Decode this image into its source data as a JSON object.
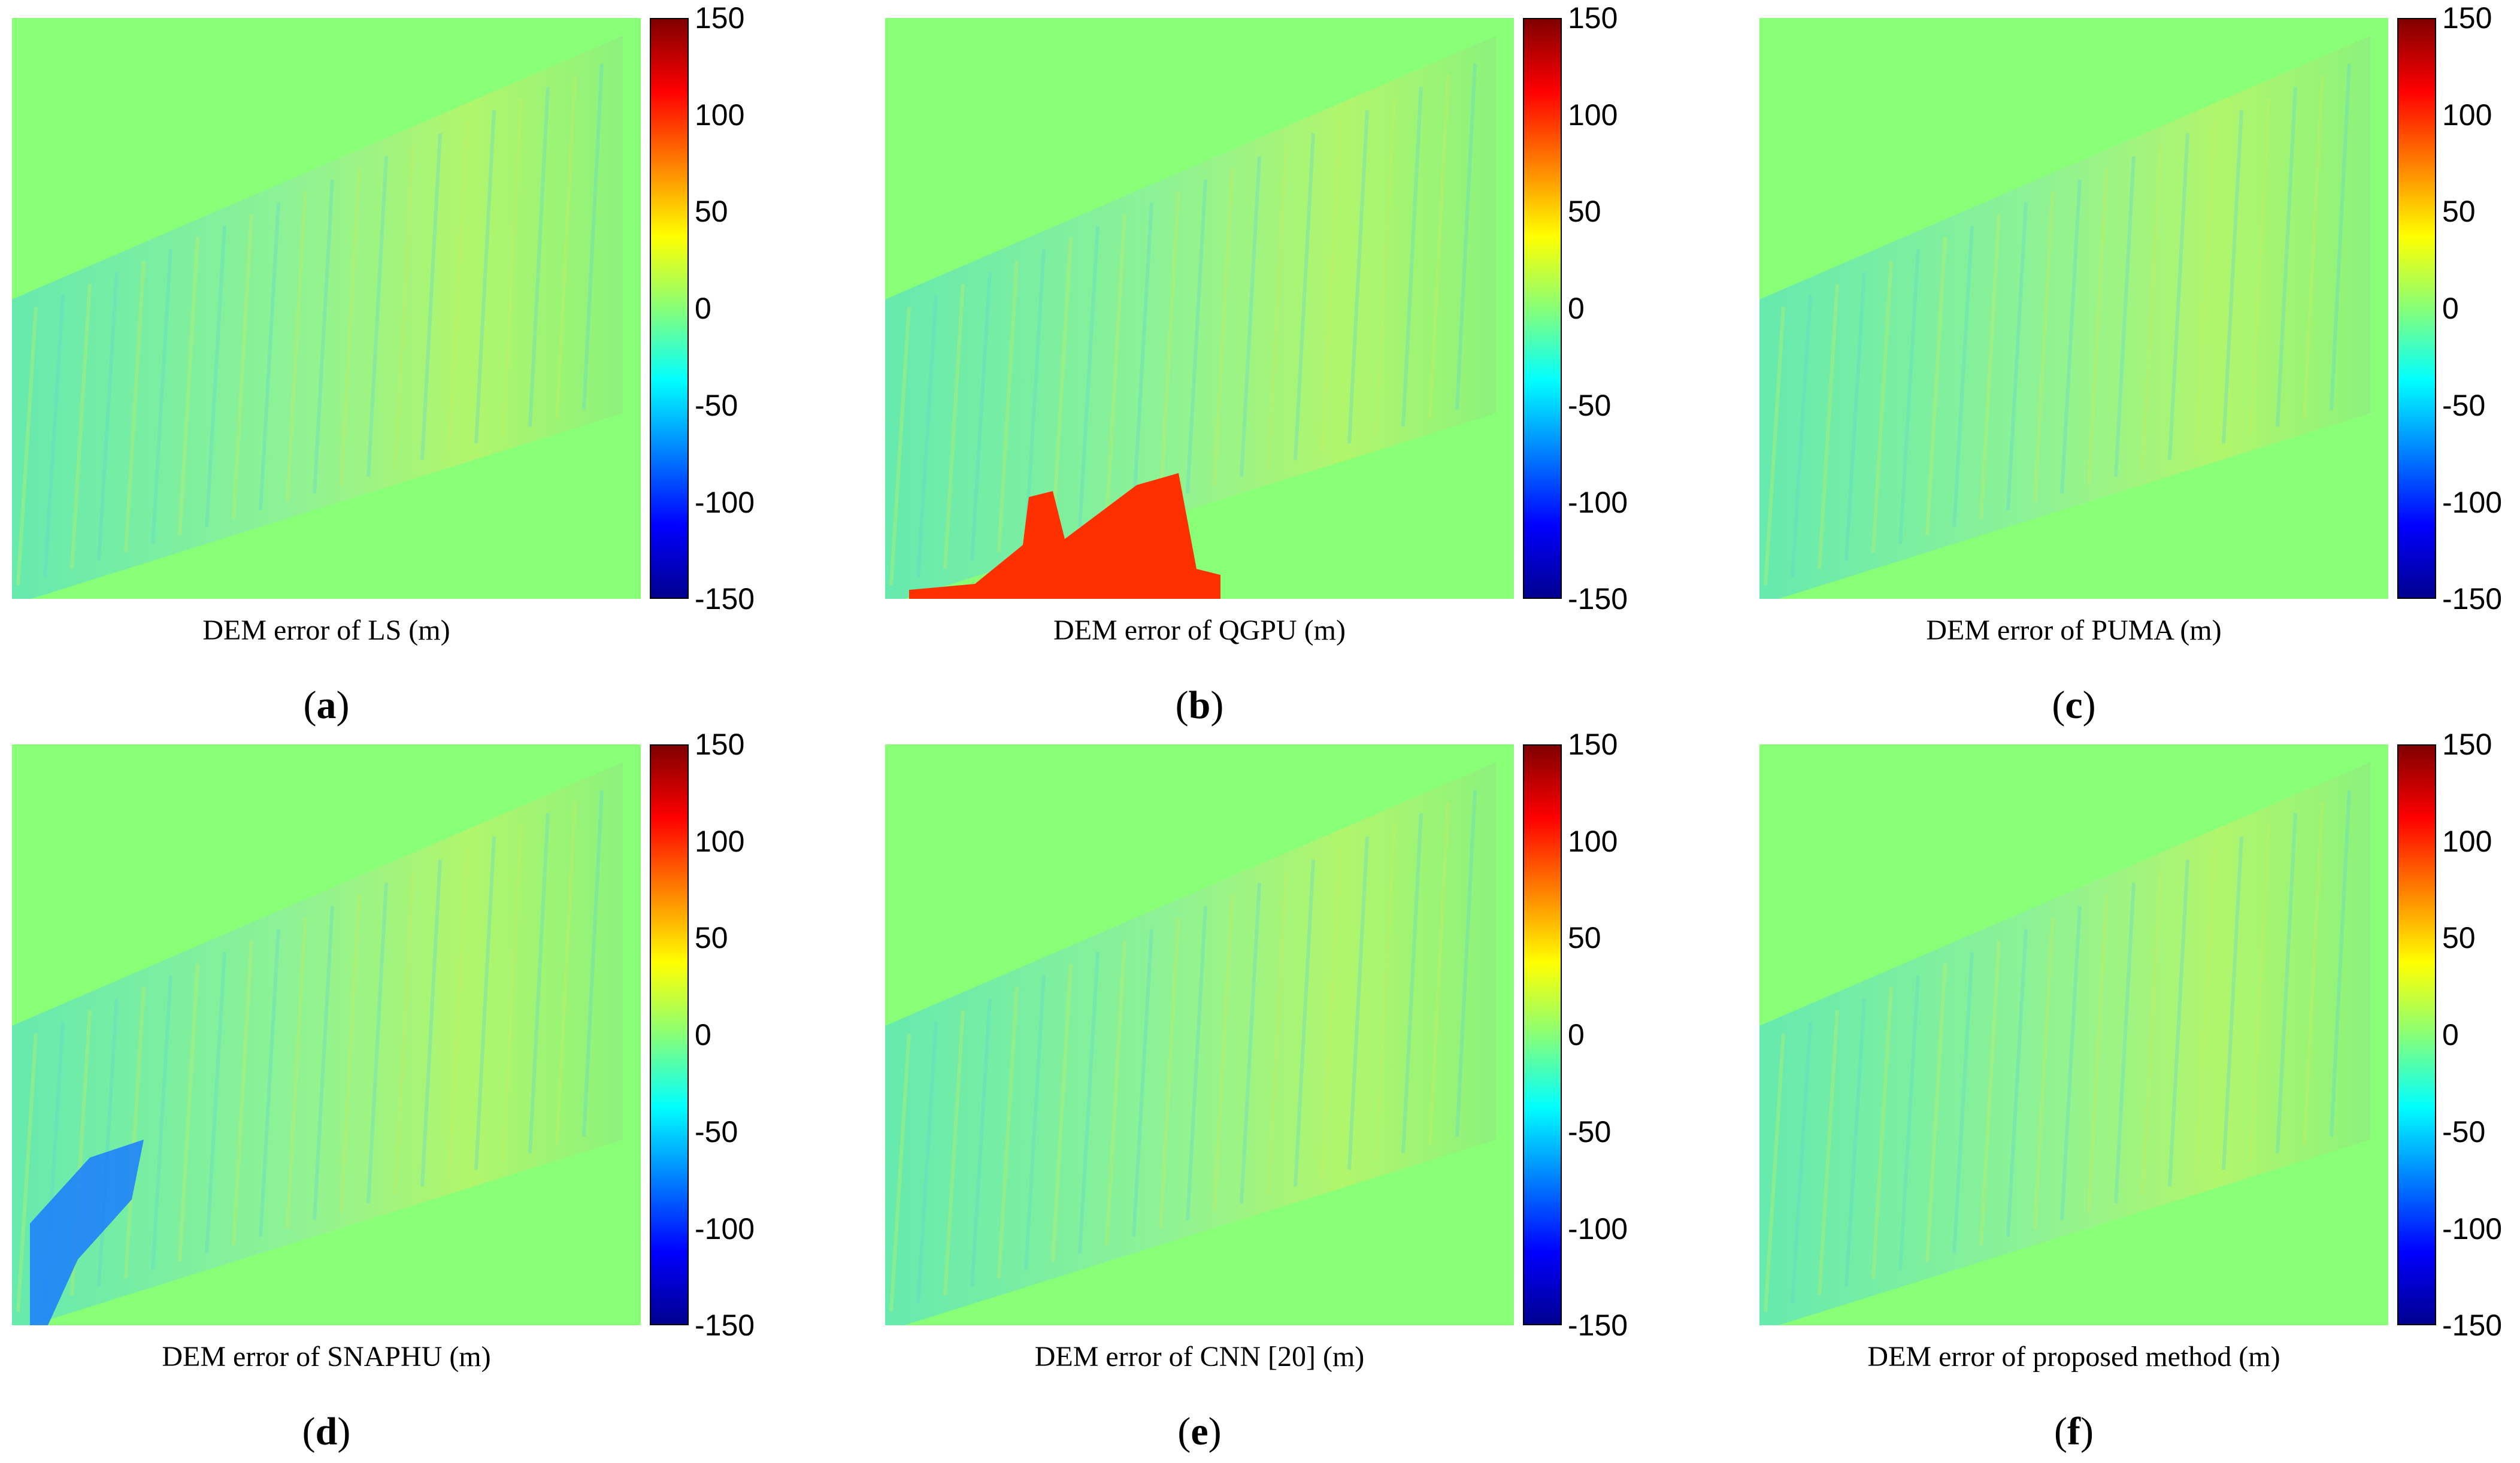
{
  "colorbar": {
    "ticks": [
      "150",
      "100",
      "50",
      "0",
      "-50",
      "-100",
      "-150"
    ],
    "colors": [
      "#00008f",
      "#0000ff",
      "#00ffff",
      "#88ff77",
      "#ffff00",
      "#ff0000",
      "#800000"
    ]
  },
  "panels": [
    {
      "caption": "DEM error of LS (m)",
      "label": "a"
    },
    {
      "caption": "DEM error of QGPU (m)",
      "label": "b"
    },
    {
      "caption": "DEM error of PUMA (m)",
      "label": "c"
    },
    {
      "caption": "DEM error of SNAPHU (m)",
      "label": "d"
    },
    {
      "caption": "DEM error of CNN [20] (m)",
      "label": "e"
    },
    {
      "caption": "DEM error of proposed method (m)",
      "label": "f"
    }
  ]
}
